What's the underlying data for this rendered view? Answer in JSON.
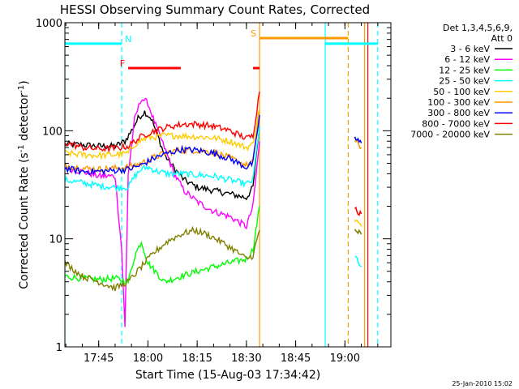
{
  "chart_data": {
    "type": "line",
    "title": "HESSI Observing Summary Count Rates, Corrected",
    "xlabel": "Start Time (15-Aug-03 17:34:42)",
    "ylabel": "Corrected Count Rate (s⁻¹ detector⁻¹)",
    "ylabel_main": "Corrected Count Rate (s",
    "ylabel_sup1": "-1",
    "ylabel_mid": " detector",
    "ylabel_sup2": "-1",
    "ylabel_end": ")",
    "y_scale": "log",
    "ylim": [
      1,
      1000
    ],
    "xlim": [
      "17:34:42",
      "19:14:00"
    ],
    "x_ticks": [
      {
        "t": "17:45",
        "label": "17:45"
      },
      {
        "t": "18:00",
        "label": "18:00"
      },
      {
        "t": "18:15",
        "label": "18:15"
      },
      {
        "t": "18:30",
        "label": "18:30"
      },
      {
        "t": "18:45",
        "label": "18:45"
      },
      {
        "t": "19:00",
        "label": "19:00"
      }
    ],
    "y_ticks": [
      {
        "v": 1,
        "label": "1"
      },
      {
        "v": 10,
        "label": "10"
      },
      {
        "v": 100,
        "label": "100"
      },
      {
        "v": 1000,
        "label": "1000"
      }
    ],
    "legend_header": [
      "Det 1,3,4,5,6,9,",
      "Att 0"
    ],
    "legend_position": "right",
    "series": [
      {
        "name": "3 - 6 keV",
        "color": "#000000",
        "points": [
          [
            "17:34:42",
            75
          ],
          [
            "17:40",
            74
          ],
          [
            "17:45",
            72
          ],
          [
            "17:50",
            72
          ],
          [
            "17:53",
            80
          ],
          [
            "17:55",
            100
          ],
          [
            "17:57",
            130
          ],
          [
            "17:59",
            150
          ],
          [
            "18:01",
            130
          ],
          [
            "18:03",
            90
          ],
          [
            "18:05",
            60
          ],
          [
            "18:08",
            45
          ],
          [
            "18:11",
            35
          ],
          [
            "18:15",
            30
          ],
          [
            "18:20",
            28
          ],
          [
            "18:25",
            26
          ],
          [
            "18:30",
            24
          ],
          [
            "18:32",
            30
          ],
          [
            "18:34",
            110
          ]
        ]
      },
      {
        "name": "6 - 12 keV",
        "color": "#ff00ff",
        "points": [
          [
            "17:34:42",
            45
          ],
          [
            "17:40",
            42
          ],
          [
            "17:45",
            38
          ],
          [
            "17:50",
            38
          ],
          [
            "17:52",
            8
          ],
          [
            "17:53",
            1.5
          ],
          [
            "17:54",
            40
          ],
          [
            "17:56",
            130
          ],
          [
            "17:58",
            200
          ],
          [
            "18:00",
            180
          ],
          [
            "18:02",
            120
          ],
          [
            "18:05",
            70
          ],
          [
            "18:08",
            40
          ],
          [
            "18:11",
            28
          ],
          [
            "18:15",
            22
          ],
          [
            "18:20",
            18
          ],
          [
            "18:25",
            16
          ],
          [
            "18:30",
            13
          ],
          [
            "18:32",
            20
          ],
          [
            "18:34",
            80
          ]
        ]
      },
      {
        "name": "12 - 25 keV",
        "color": "#00ff00",
        "points": [
          [
            "17:34:42",
            4.5
          ],
          [
            "17:40",
            4.3
          ],
          [
            "17:45",
            4.2
          ],
          [
            "17:50",
            4.3
          ],
          [
            "17:54",
            4
          ],
          [
            "17:56",
            7
          ],
          [
            "17:58",
            9.5
          ],
          [
            "18:00",
            6
          ],
          [
            "18:05",
            4
          ],
          [
            "18:10",
            4.5
          ],
          [
            "18:15",
            5
          ],
          [
            "18:20",
            5.5
          ],
          [
            "18:25",
            6
          ],
          [
            "18:30",
            6.5
          ],
          [
            "18:32",
            8
          ],
          [
            "18:34",
            20
          ]
        ]
      },
      {
        "name": "25 - 50 keV",
        "color": "#00ffff",
        "points": [
          [
            "17:34:42",
            35
          ],
          [
            "17:40",
            33
          ],
          [
            "17:45",
            31
          ],
          [
            "17:50",
            30
          ],
          [
            "17:54",
            30
          ],
          [
            "17:56",
            38
          ],
          [
            "17:58",
            44
          ],
          [
            "18:00",
            46
          ],
          [
            "18:03",
            42
          ],
          [
            "18:06",
            40
          ],
          [
            "18:10",
            40
          ],
          [
            "18:15",
            39
          ],
          [
            "18:20",
            38
          ],
          [
            "18:25",
            35
          ],
          [
            "18:30",
            32
          ],
          [
            "18:32",
            35
          ],
          [
            "18:34",
            110
          ]
        ],
        "after_gap": [
          [
            "19:03",
            7
          ],
          [
            "19:04",
            6
          ],
          [
            "19:05",
            5.5
          ]
        ]
      },
      {
        "name": "50 - 100 keV",
        "color": "#ffcc00",
        "points": [
          [
            "17:34:42",
            62
          ],
          [
            "17:40",
            60
          ],
          [
            "17:45",
            59
          ],
          [
            "17:50",
            60
          ],
          [
            "17:54",
            62
          ],
          [
            "17:56",
            75
          ],
          [
            "17:58",
            82
          ],
          [
            "18:00",
            86
          ],
          [
            "18:05",
            90
          ],
          [
            "18:10",
            90
          ],
          [
            "18:15",
            88
          ],
          [
            "18:20",
            86
          ],
          [
            "18:25",
            80
          ],
          [
            "18:30",
            70
          ],
          [
            "18:32",
            75
          ],
          [
            "18:34",
            160
          ]
        ],
        "after_gap": [
          [
            "19:03",
            15
          ],
          [
            "19:04",
            14
          ],
          [
            "19:05",
            13
          ]
        ]
      },
      {
        "name": "100 - 300 keV",
        "color": "#ff9900",
        "points": [
          [
            "17:34:42",
            48
          ],
          [
            "17:40",
            45
          ],
          [
            "17:45",
            44
          ],
          [
            "17:50",
            45
          ],
          [
            "17:54",
            46
          ],
          [
            "17:58",
            50
          ],
          [
            "18:02",
            57
          ],
          [
            "18:06",
            63
          ],
          [
            "18:10",
            66
          ],
          [
            "18:15",
            66
          ],
          [
            "18:20",
            63
          ],
          [
            "18:25",
            56
          ],
          [
            "18:30",
            48
          ],
          [
            "18:32",
            52
          ],
          [
            "18:34",
            150
          ]
        ],
        "after_gap": [
          [
            "19:03",
            80
          ],
          [
            "19:04",
            75
          ],
          [
            "19:05",
            70
          ]
        ]
      },
      {
        "name": "300 - 800 keV",
        "color": "#0000ff",
        "points": [
          [
            "17:34:42",
            45
          ],
          [
            "17:40",
            42
          ],
          [
            "17:45",
            42
          ],
          [
            "17:50",
            43
          ],
          [
            "17:54",
            44
          ],
          [
            "17:58",
            48
          ],
          [
            "18:02",
            56
          ],
          [
            "18:06",
            62
          ],
          [
            "18:10",
            67
          ],
          [
            "18:15",
            66
          ],
          [
            "18:20",
            62
          ],
          [
            "18:25",
            55
          ],
          [
            "18:30",
            46
          ],
          [
            "18:32",
            50
          ],
          [
            "18:34",
            140
          ]
        ],
        "after_gap": [
          [
            "19:03",
            85
          ],
          [
            "19:04",
            80
          ],
          [
            "19:05",
            77
          ]
        ]
      },
      {
        "name": "800 - 7000 keV",
        "color": "#ff0000",
        "points": [
          [
            "17:34:42",
            78
          ],
          [
            "17:40",
            70
          ],
          [
            "17:45",
            68
          ],
          [
            "17:50",
            69
          ],
          [
            "17:54",
            72
          ],
          [
            "17:56",
            80
          ],
          [
            "17:58",
            88
          ],
          [
            "18:00",
            95
          ],
          [
            "18:03",
            102
          ],
          [
            "18:07",
            110
          ],
          [
            "18:11",
            115
          ],
          [
            "18:15",
            115
          ],
          [
            "18:20",
            110
          ],
          [
            "18:25",
            100
          ],
          [
            "18:30",
            85
          ],
          [
            "18:32",
            90
          ],
          [
            "18:34",
            230
          ]
        ],
        "after_gap": [
          [
            "19:03",
            20
          ],
          [
            "19:04",
            18
          ],
          [
            "19:05",
            17
          ]
        ]
      },
      {
        "name": "7000 - 20000 keV",
        "color": "#808000",
        "points": [
          [
            "17:34:42",
            6
          ],
          [
            "17:40",
            4.5
          ],
          [
            "17:45",
            4
          ],
          [
            "17:50",
            3.5
          ],
          [
            "17:54",
            4
          ],
          [
            "17:58",
            5.5
          ],
          [
            "18:02",
            7.5
          ],
          [
            "18:06",
            9.5
          ],
          [
            "18:10",
            11
          ],
          [
            "18:14",
            12
          ],
          [
            "18:18",
            11
          ],
          [
            "18:22",
            9.5
          ],
          [
            "18:26",
            8
          ],
          [
            "18:30",
            6.5
          ],
          [
            "18:32",
            7
          ],
          [
            "18:34",
            12
          ]
        ],
        "after_gap": [
          [
            "19:03",
            12
          ],
          [
            "19:04",
            11.5
          ],
          [
            "19:05",
            11
          ]
        ]
      }
    ],
    "vertical_lines": [
      {
        "t": "17:34:42",
        "color": "#00ffff",
        "style": "solid"
      },
      {
        "t": "17:52",
        "color": "#00ffff",
        "style": "dashed"
      },
      {
        "t": "18:34",
        "color": "#ff9900",
        "style": "solid"
      },
      {
        "t": "18:54",
        "color": "#00ffff",
        "style": "solid"
      },
      {
        "t": "19:01",
        "color": "#ff9900",
        "style": "dashed"
      },
      {
        "t": "19:06",
        "color": "#ff9900",
        "style": "solid"
      },
      {
        "t": "19:07",
        "color": "#ff0000",
        "style": "solid"
      },
      {
        "t": "19:10",
        "color": "#00ffff",
        "style": "dashed"
      }
    ],
    "flag_bars": [
      {
        "label": "N",
        "color": "#00ffff",
        "segments": [
          [
            "17:34:42",
            "17:52"
          ],
          [
            "18:54",
            "19:10"
          ]
        ],
        "label_at": "17:53",
        "label_side": "right",
        "level": 640
      },
      {
        "label": "F",
        "color": "#ff0000",
        "segments": [
          [
            "17:54",
            "18:10"
          ],
          [
            "18:32",
            "18:34"
          ]
        ],
        "label_at": "17:53",
        "label_side": "left",
        "level": 380
      },
      {
        "label": "S",
        "color": "#ff9900",
        "segments": [
          [
            "18:34",
            "19:01"
          ]
        ],
        "label_at": "18:33",
        "label_side": "left",
        "level": 720
      }
    ],
    "timestamp": "25-Jan-2010 15:02"
  }
}
